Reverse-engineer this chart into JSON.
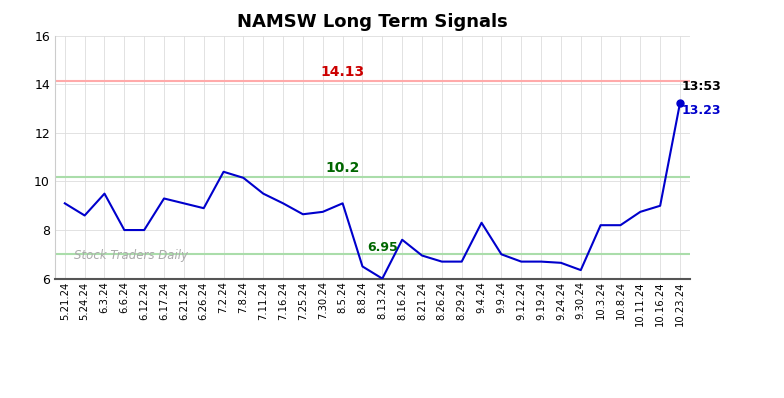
{
  "title": "NAMSW Long Term Signals",
  "x_labels": [
    "5.21.24",
    "5.24.24",
    "6.3.24",
    "6.6.24",
    "6.12.24",
    "6.17.24",
    "6.21.24",
    "6.26.24",
    "7.2.24",
    "7.8.24",
    "7.11.24",
    "7.16.24",
    "7.25.24",
    "7.30.24",
    "8.5.24",
    "8.8.24",
    "8.13.24",
    "8.16.24",
    "8.21.24",
    "8.26.24",
    "8.29.24",
    "9.4.24",
    "9.9.24",
    "9.12.24",
    "9.19.24",
    "9.24.24",
    "9.30.24",
    "10.3.24",
    "10.8.24",
    "10.11.24",
    "10.16.24",
    "10.23.24"
  ],
  "y_data": [
    9.1,
    8.6,
    9.5,
    8.0,
    8.0,
    9.3,
    9.1,
    8.9,
    10.4,
    10.15,
    9.5,
    9.1,
    8.65,
    8.75,
    9.1,
    6.5,
    6.0,
    7.6,
    6.95,
    6.7,
    6.7,
    8.3,
    7.0,
    6.7,
    6.7,
    6.65,
    6.35,
    8.2,
    8.2,
    8.75,
    9.0,
    13.23
  ],
  "hline_red": 14.13,
  "hline_green_upper": 10.2,
  "hline_green_lower": 7.0,
  "hline_red_color": "#ffaaaa",
  "hline_green_color": "#aaddaa",
  "line_color": "#0000cc",
  "ylim": [
    6,
    16
  ],
  "yticks": [
    6,
    8,
    10,
    12,
    14,
    16
  ],
  "watermark": "Stock Traders Daily",
  "ann_red_text": "14.13",
  "ann_red_xi": 14,
  "ann_green_text": "10.2",
  "ann_green_xi": 14,
  "ann_695_text": "6.95",
  "ann_695_xi": 16,
  "last_time": "13:53",
  "last_val": "13.23",
  "bg_color": "#ffffff",
  "grid_color": "#dddddd",
  "grid_color2": "#eeeeee"
}
